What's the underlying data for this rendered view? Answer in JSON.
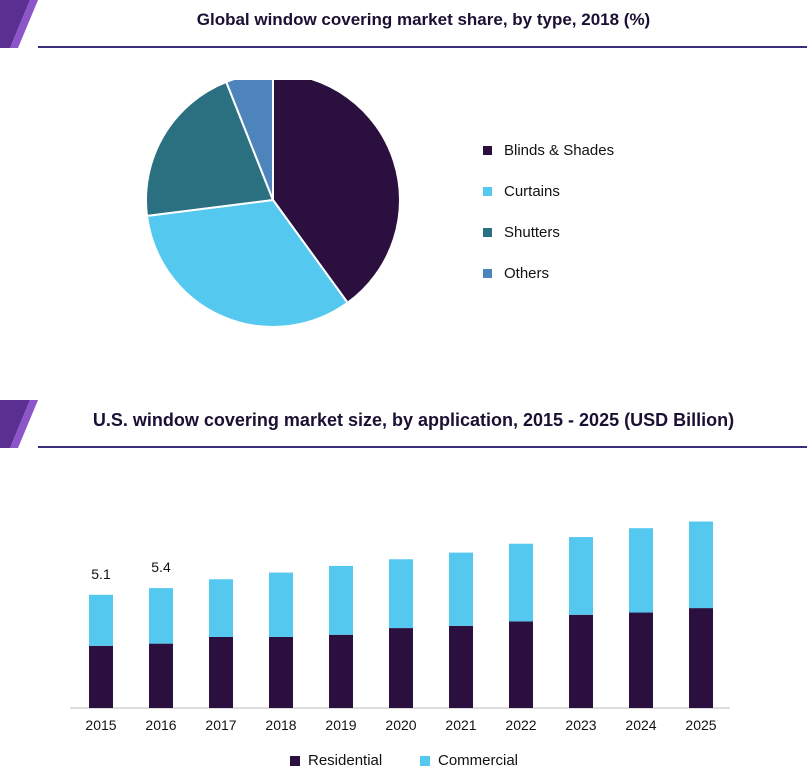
{
  "colors": {
    "accent": "#3b2d7a",
    "corner": "#5b2f91",
    "corner_light": "#8c55c8"
  },
  "chart_data": [
    {
      "type": "pie",
      "title": "Global window covering market share, by type, 2018 (%)",
      "labels": [
        "Blinds & Shades",
        "Curtains",
        "Shutters",
        "Others"
      ],
      "values": [
        40,
        33,
        21,
        6
      ],
      "colors": [
        "#2a0f3f",
        "#55c8f0",
        "#2a7080",
        "#4d84bb"
      ],
      "legend_position": "right"
    },
    {
      "type": "bar",
      "stacked": true,
      "title": "U.S. window covering market size, by application, 2015 - 2025 (USD Billion)",
      "categories": [
        "2015",
        "2016",
        "2017",
        "2018",
        "2019",
        "2020",
        "2021",
        "2022",
        "2023",
        "2024",
        "2025"
      ],
      "series": [
        {
          "name": "Residential",
          "color": "#2a0f3f",
          "values": [
            2.8,
            2.9,
            3.2,
            3.2,
            3.3,
            3.6,
            3.7,
            3.9,
            4.2,
            4.3,
            4.5
          ]
        },
        {
          "name": "Commercial",
          "color": "#55c8f0",
          "values": [
            2.3,
            2.5,
            2.6,
            2.9,
            3.1,
            3.1,
            3.3,
            3.5,
            3.5,
            3.8,
            3.9
          ]
        }
      ],
      "data_labels": [
        "5.1",
        "5.4",
        "",
        "",
        "",
        "",
        "",
        "",
        "",
        "",
        ""
      ],
      "legend_position": "bottom",
      "grid": false
    }
  ]
}
